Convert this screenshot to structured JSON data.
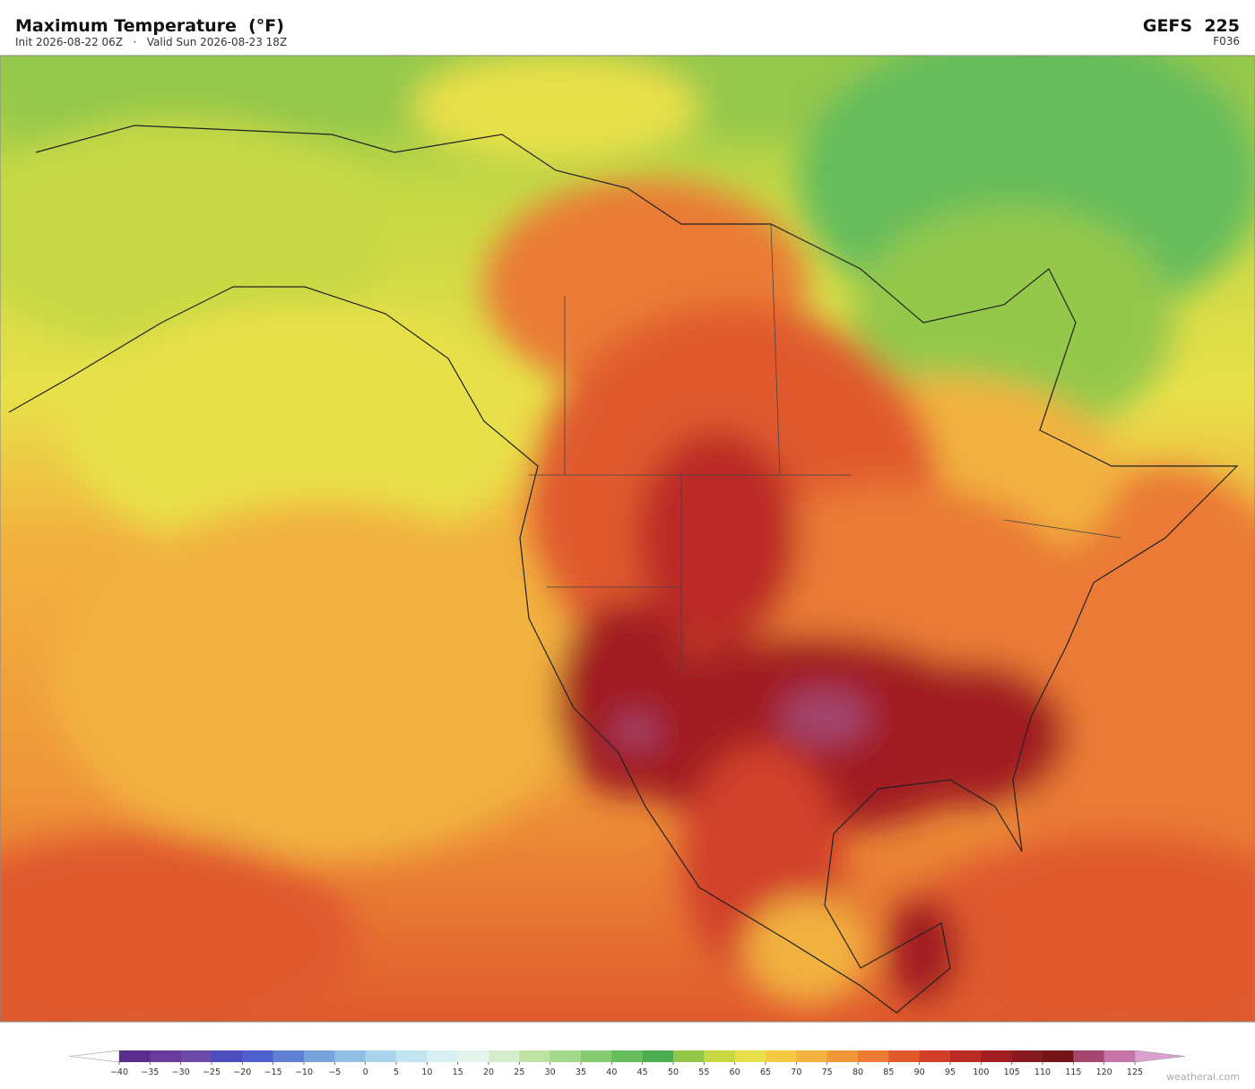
{
  "header": {
    "title": "Maximum Temperature  (°F)",
    "subtitle": "Init 2026-08-22 06Z   ·   Valid Sun 2026-08-23 18Z",
    "model": "GEFS  225",
    "forecast_hour": "F036"
  },
  "colorbar": {
    "ticks": [
      {
        "value": -40,
        "label": "−40"
      },
      {
        "value": -35,
        "label": "−35"
      },
      {
        "value": -30,
        "label": "−30"
      },
      {
        "value": -25,
        "label": "−25"
      },
      {
        "value": -20,
        "label": "−20"
      },
      {
        "value": -15,
        "label": "−15"
      },
      {
        "value": -10,
        "label": "−10"
      },
      {
        "value": -5,
        "label": "−5"
      },
      0,
      5,
      10,
      15,
      20,
      25,
      30,
      35,
      40,
      45,
      50,
      55,
      60,
      65,
      70,
      75,
      80,
      85,
      90,
      95,
      100,
      105,
      110,
      115,
      120,
      125
    ],
    "colors": [
      "#5a2c8c",
      "#6a3a9c",
      "#6b4aaa",
      "#4d4dbe",
      "#4f60cc",
      "#5f80d3",
      "#78a2dc",
      "#92bfe4",
      "#aad3ec",
      "#c3e4f1",
      "#d8eff3",
      "#e6f4ee",
      "#d5edcb",
      "#bde2a4",
      "#a3d789",
      "#86cb72",
      "#66bd5c",
      "#4cad50",
      "#94c84b",
      "#c6d844",
      "#e8e04a",
      "#f4ca44",
      "#f2b23f",
      "#ef9739",
      "#ea7a34",
      "#e05a2d",
      "#d13f29",
      "#bb2b25",
      "#a11d22",
      "#871a1e",
      "#741418",
      "#a3476f",
      "#c673a6"
    ],
    "under_color": "#ffffff",
    "over_color": "#d9a0d0"
  },
  "watermark": "weatherai.com"
}
